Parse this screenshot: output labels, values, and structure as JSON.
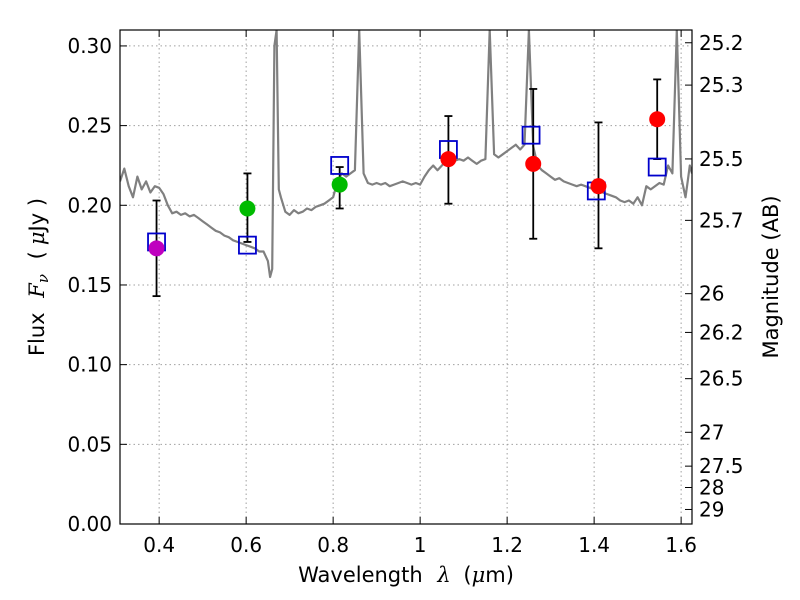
{
  "chart_data": {
    "type": "scatter",
    "title": "",
    "xlabel": "Wavelength",
    "xlabel_symbol": "λ",
    "xlabel_unit_open": "(",
    "xlabel_unit_mu": "μ",
    "xlabel_unit_rest": "m)",
    "ylabel": "Flux",
    "ylabel_symbol": "F",
    "ylabel_subscript": "ν",
    "ylabel_unit_open": "(",
    "ylabel_unit_mu": "μ",
    "ylabel_unit_rest": "Jy )",
    "y2label": "Magnitude (AB)",
    "xlim": [
      0.31,
      1.625
    ],
    "ylim": [
      0.0,
      0.31
    ],
    "grid": true,
    "x_ticks": [
      {
        "value": 0.4,
        "label": "0.4"
      },
      {
        "value": 0.6,
        "label": "0.6"
      },
      {
        "value": 0.8,
        "label": "0.8"
      },
      {
        "value": 1.0,
        "label": "1"
      },
      {
        "value": 1.2,
        "label": "1.2"
      },
      {
        "value": 1.4,
        "label": "1.4"
      },
      {
        "value": 1.6,
        "label": "1.6"
      }
    ],
    "y_ticks": [
      {
        "value": 0.0,
        "label": "0.00"
      },
      {
        "value": 0.05,
        "label": "0.05"
      },
      {
        "value": 0.1,
        "label": "0.10"
      },
      {
        "value": 0.15,
        "label": "0.15"
      },
      {
        "value": 0.2,
        "label": "0.20"
      },
      {
        "value": 0.25,
        "label": "0.25"
      },
      {
        "value": 0.3,
        "label": "0.30"
      }
    ],
    "y2_ticks": [
      {
        "mag": 25.2,
        "label": "25.2"
      },
      {
        "mag": 25.3,
        "label": "25.3"
      },
      {
        "mag": 25.5,
        "label": "25.5"
      },
      {
        "mag": 25.7,
        "label": "25.7"
      },
      {
        "mag": 26,
        "label": "26"
      },
      {
        "mag": 26.2,
        "label": "26.2"
      },
      {
        "mag": 26.5,
        "label": "26.5"
      },
      {
        "mag": 27,
        "label": "27"
      },
      {
        "mag": 27.5,
        "label": "27.5"
      },
      {
        "mag": 28,
        "label": "28"
      },
      {
        "mag": 29,
        "label": "29"
      }
    ],
    "colors": {
      "spectrum": "#808080",
      "model": "#0000cc",
      "purple": "#bf00bf",
      "green": "#00bb00",
      "red": "#ff0000",
      "errorbar": "#000000",
      "grid": "#a0a0a0"
    },
    "observed": [
      {
        "x": 0.394,
        "y": 0.173,
        "err": [
          0.143,
          0.203
        ],
        "color": "purple"
      },
      {
        "x": 0.603,
        "y": 0.198,
        "err": [
          0.177,
          0.22
        ],
        "color": "green"
      },
      {
        "x": 0.815,
        "y": 0.213,
        "err": [
          0.198,
          0.224
        ],
        "color": "green"
      },
      {
        "x": 1.065,
        "y": 0.229,
        "err": [
          0.201,
          0.256
        ],
        "color": "red"
      },
      {
        "x": 1.26,
        "y": 0.226,
        "err": [
          0.179,
          0.273
        ],
        "color": "red"
      },
      {
        "x": 1.41,
        "y": 0.212,
        "err": [
          0.173,
          0.252
        ],
        "color": "red"
      },
      {
        "x": 1.545,
        "y": 0.254,
        "err": [
          0.229,
          0.279
        ],
        "color": "red"
      }
    ],
    "model_points": [
      {
        "x": 0.394,
        "y": 0.177
      },
      {
        "x": 0.603,
        "y": 0.175
      },
      {
        "x": 0.815,
        "y": 0.225
      },
      {
        "x": 1.065,
        "y": 0.235
      },
      {
        "x": 1.255,
        "y": 0.244
      },
      {
        "x": 1.405,
        "y": 0.209
      },
      {
        "x": 1.545,
        "y": 0.224
      }
    ],
    "spectrum": [
      [
        0.31,
        0.215
      ],
      [
        0.32,
        0.223
      ],
      [
        0.33,
        0.212
      ],
      [
        0.34,
        0.205
      ],
      [
        0.35,
        0.218
      ],
      [
        0.36,
        0.21
      ],
      [
        0.37,
        0.215
      ],
      [
        0.38,
        0.208
      ],
      [
        0.39,
        0.212
      ],
      [
        0.4,
        0.211
      ],
      [
        0.41,
        0.207
      ],
      [
        0.42,
        0.2
      ],
      [
        0.43,
        0.195
      ],
      [
        0.44,
        0.196
      ],
      [
        0.45,
        0.194
      ],
      [
        0.46,
        0.195
      ],
      [
        0.47,
        0.193
      ],
      [
        0.48,
        0.194
      ],
      [
        0.49,
        0.192
      ],
      [
        0.5,
        0.19
      ],
      [
        0.51,
        0.188
      ],
      [
        0.52,
        0.186
      ],
      [
        0.53,
        0.184
      ],
      [
        0.54,
        0.183
      ],
      [
        0.55,
        0.181
      ],
      [
        0.56,
        0.18
      ],
      [
        0.57,
        0.178
      ],
      [
        0.58,
        0.177
      ],
      [
        0.59,
        0.176
      ],
      [
        0.6,
        0.175
      ],
      [
        0.61,
        0.174
      ],
      [
        0.62,
        0.173
      ],
      [
        0.63,
        0.171
      ],
      [
        0.64,
        0.171
      ],
      [
        0.65,
        0.165
      ],
      [
        0.655,
        0.155
      ],
      [
        0.66,
        0.16
      ],
      [
        0.665,
        0.3
      ],
      [
        0.67,
        0.31
      ],
      [
        0.675,
        0.21
      ],
      [
        0.68,
        0.205
      ],
      [
        0.69,
        0.196
      ],
      [
        0.7,
        0.194
      ],
      [
        0.71,
        0.197
      ],
      [
        0.72,
        0.195
      ],
      [
        0.73,
        0.196
      ],
      [
        0.74,
        0.198
      ],
      [
        0.75,
        0.197
      ],
      [
        0.76,
        0.199
      ],
      [
        0.77,
        0.2
      ],
      [
        0.78,
        0.201
      ],
      [
        0.79,
        0.203
      ],
      [
        0.8,
        0.205
      ],
      [
        0.81,
        0.215
      ],
      [
        0.82,
        0.22
      ],
      [
        0.83,
        0.218
      ],
      [
        0.84,
        0.22
      ],
      [
        0.85,
        0.222
      ],
      [
        0.86,
        0.31
      ],
      [
        0.87,
        0.22
      ],
      [
        0.88,
        0.214
      ],
      [
        0.89,
        0.213
      ],
      [
        0.9,
        0.214
      ],
      [
        0.91,
        0.213
      ],
      [
        0.92,
        0.214
      ],
      [
        0.93,
        0.212
      ],
      [
        0.94,
        0.213
      ],
      [
        0.95,
        0.214
      ],
      [
        0.96,
        0.215
      ],
      [
        0.97,
        0.214
      ],
      [
        0.98,
        0.213
      ],
      [
        0.99,
        0.214
      ],
      [
        1.0,
        0.213
      ],
      [
        1.01,
        0.218
      ],
      [
        1.02,
        0.222
      ],
      [
        1.03,
        0.225
      ],
      [
        1.04,
        0.222
      ],
      [
        1.05,
        0.225
      ],
      [
        1.06,
        0.228
      ],
      [
        1.07,
        0.226
      ],
      [
        1.08,
        0.228
      ],
      [
        1.09,
        0.229
      ],
      [
        1.1,
        0.228
      ],
      [
        1.11,
        0.23
      ],
      [
        1.12,
        0.228
      ],
      [
        1.13,
        0.226
      ],
      [
        1.14,
        0.228
      ],
      [
        1.15,
        0.229
      ],
      [
        1.16,
        0.31
      ],
      [
        1.17,
        0.232
      ],
      [
        1.18,
        0.23
      ],
      [
        1.19,
        0.232
      ],
      [
        1.2,
        0.234
      ],
      [
        1.21,
        0.236
      ],
      [
        1.22,
        0.238
      ],
      [
        1.23,
        0.235
      ],
      [
        1.24,
        0.238
      ],
      [
        1.25,
        0.31
      ],
      [
        1.26,
        0.237
      ],
      [
        1.27,
        0.225
      ],
      [
        1.28,
        0.222
      ],
      [
        1.29,
        0.22
      ],
      [
        1.3,
        0.218
      ],
      [
        1.31,
        0.216
      ],
      [
        1.32,
        0.217
      ],
      [
        1.33,
        0.215
      ],
      [
        1.34,
        0.214
      ],
      [
        1.35,
        0.213
      ],
      [
        1.36,
        0.212
      ],
      [
        1.37,
        0.213
      ],
      [
        1.38,
        0.212
      ],
      [
        1.39,
        0.211
      ],
      [
        1.4,
        0.21
      ],
      [
        1.41,
        0.209
      ],
      [
        1.42,
        0.208
      ],
      [
        1.43,
        0.207
      ],
      [
        1.44,
        0.206
      ],
      [
        1.45,
        0.205
      ],
      [
        1.46,
        0.203
      ],
      [
        1.47,
        0.202
      ],
      [
        1.48,
        0.203
      ],
      [
        1.49,
        0.201
      ],
      [
        1.5,
        0.205
      ],
      [
        1.51,
        0.2
      ],
      [
        1.52,
        0.212
      ],
      [
        1.53,
        0.21
      ],
      [
        1.54,
        0.212
      ],
      [
        1.55,
        0.214
      ],
      [
        1.56,
        0.213
      ],
      [
        1.57,
        0.225
      ],
      [
        1.58,
        0.22
      ],
      [
        1.59,
        0.31
      ],
      [
        1.6,
        0.218
      ],
      [
        1.61,
        0.205
      ],
      [
        1.615,
        0.215
      ],
      [
        1.62,
        0.225
      ],
      [
        1.625,
        0.22
      ]
    ]
  }
}
